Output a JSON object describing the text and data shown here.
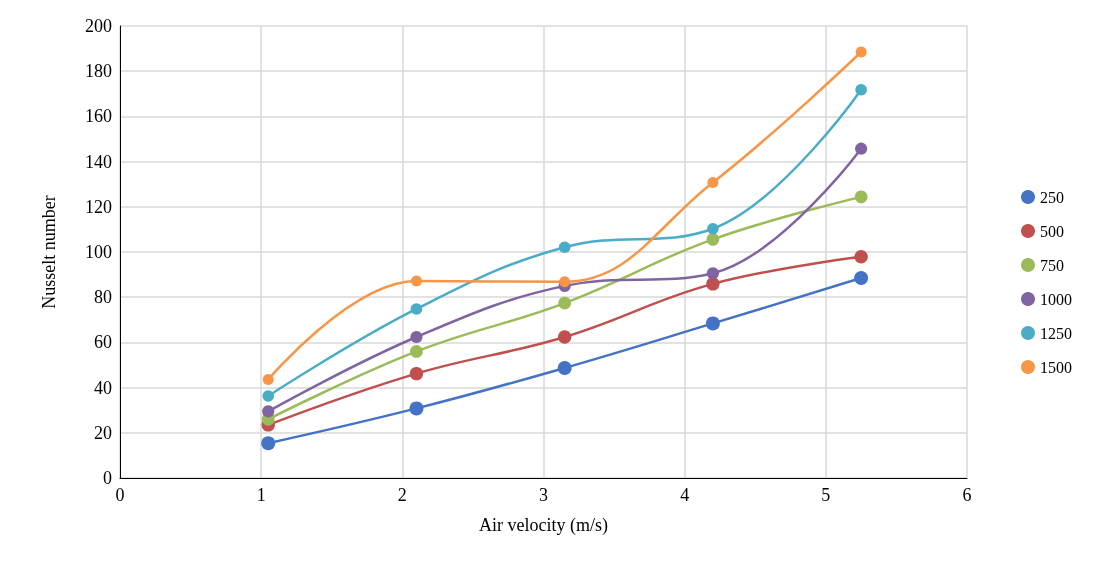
{
  "chart_data": {
    "type": "line",
    "xlabel": "Air velocity (m/s)",
    "ylabel": "Nusselt number",
    "xlim": [
      0,
      6
    ],
    "xticks": [
      0,
      1,
      2,
      3,
      4,
      5,
      6
    ],
    "ylim": [
      0,
      200
    ],
    "yticks": [
      0,
      20,
      40,
      60,
      80,
      100,
      120,
      140,
      160,
      180,
      200
    ],
    "grid": true,
    "legend": "right",
    "marker": "circle",
    "line_style": "solid",
    "x": [
      1.05,
      2.1,
      3.15,
      4.2,
      5.25
    ],
    "series": [
      {
        "name": "250",
        "color": "#4472c4",
        "values": [
          15.4,
          30.8,
          48.7,
          68.4,
          88.5
        ]
      },
      {
        "name": "500",
        "color": "#c0504d",
        "values": [
          23.5,
          46.2,
          62.4,
          85.9,
          97.9
        ]
      },
      {
        "name": "750",
        "color": "#9bbb59",
        "values": [
          26,
          56,
          77.4,
          105.6,
          124.4
        ]
      },
      {
        "name": "1000",
        "color": "#8064a2",
        "values": [
          29.5,
          62.4,
          85,
          90.6,
          145.7
        ]
      },
      {
        "name": "1250",
        "color": "#4bacc6",
        "values": [
          36.3,
          74.8,
          102.1,
          110.3,
          171.8
        ]
      },
      {
        "name": "1500",
        "color": "#f79646",
        "values": [
          43.6,
          87.2,
          86.8,
          130.8,
          188.5
        ]
      }
    ]
  }
}
